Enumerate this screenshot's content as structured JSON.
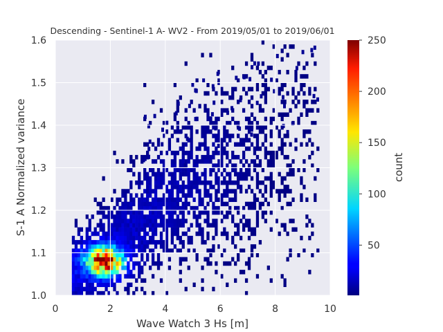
{
  "chart_data": {
    "type": "heatmap",
    "title": "Descending - Sentinel-1 A- WV2 - From 2019/05/01 to 2019/06/01",
    "xlabel": "Wave Watch 3 Hs [m]",
    "ylabel": "S-1 A Normalized variance",
    "xlim": [
      0,
      10
    ],
    "ylim": [
      1.0,
      1.6
    ],
    "xticks": [
      "0",
      "2",
      "4",
      "6",
      "8",
      "10"
    ],
    "yticks": [
      "1.0",
      "1.1",
      "1.2",
      "1.3",
      "1.4",
      "1.5",
      "1.6"
    ],
    "grid": true,
    "colorbar": {
      "label": "count",
      "range": [
        1,
        250
      ],
      "ticks": [
        "50",
        "100",
        "150",
        "200",
        "250"
      ],
      "colormap": "jet"
    },
    "x_bin_width": 0.1,
    "y_bin_width": 0.01,
    "description_of_density": {
      "peak": {
        "x": 1.8,
        "y": 1.08,
        "count": 250
      },
      "dense_ridge": [
        {
          "x": 1.0,
          "y": 1.07
        },
        {
          "x": 2.0,
          "y": 1.1
        },
        {
          "x": 3.0,
          "y": 1.16
        },
        {
          "x": 4.0,
          "y": 1.22
        },
        {
          "x": 5.0,
          "y": 1.26
        },
        {
          "x": 6.0,
          "y": 1.29
        },
        {
          "x": 7.0,
          "y": 1.31
        },
        {
          "x": 8.0,
          "y": 1.32
        },
        {
          "x": 9.0,
          "y": 1.33
        }
      ],
      "x_extent": [
        0.6,
        9.6
      ],
      "y_extent": [
        1.0,
        1.6
      ]
    }
  },
  "colors": {
    "plot_background": "#eaeaf2",
    "grid": "#ffffff"
  }
}
